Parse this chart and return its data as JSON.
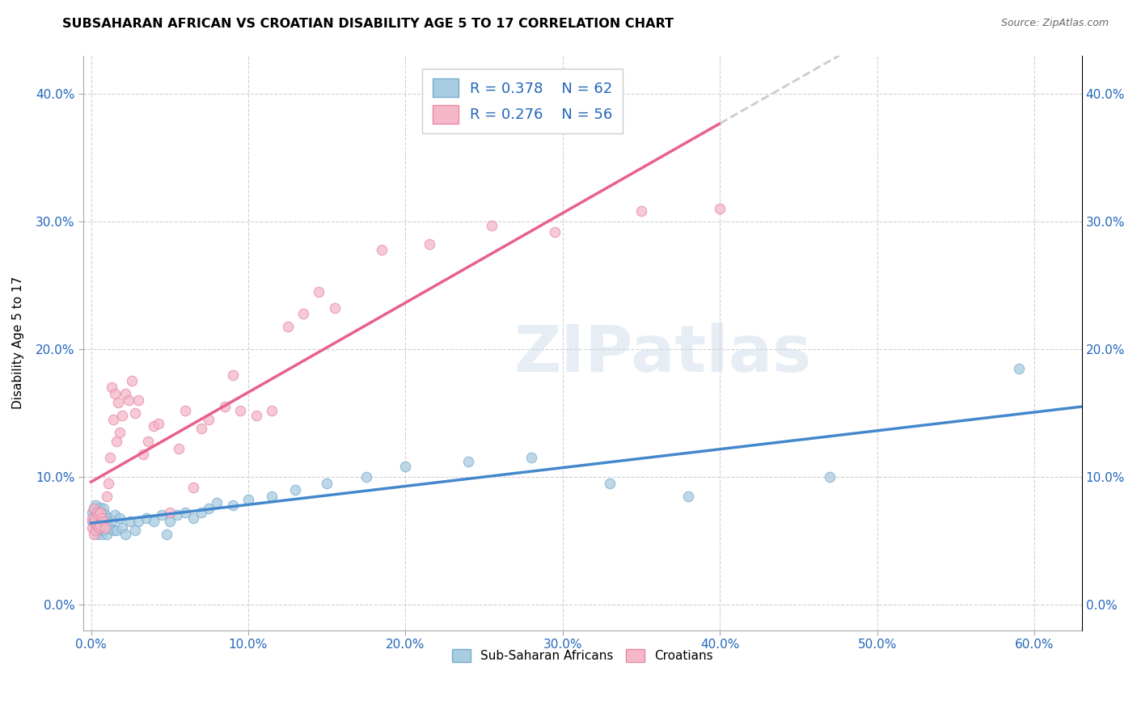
{
  "title": "SUBSAHARAN AFRICAN VS CROATIAN DISABILITY AGE 5 TO 17 CORRELATION CHART",
  "source": "Source: ZipAtlas.com",
  "ylabel": "Disability Age 5 to 17",
  "x_tick_labels": [
    "0.0%",
    "10.0%",
    "20.0%",
    "30.0%",
    "40.0%",
    "50.0%",
    "60.0%"
  ],
  "x_ticks": [
    0.0,
    0.1,
    0.2,
    0.3,
    0.4,
    0.5,
    0.6
  ],
  "y_tick_labels": [
    "0.0%",
    "10.0%",
    "20.0%",
    "30.0%",
    "40.0%"
  ],
  "y_ticks": [
    0.0,
    0.1,
    0.2,
    0.3,
    0.4
  ],
  "xlim": [
    -0.005,
    0.63
  ],
  "ylim": [
    -0.02,
    0.43
  ],
  "legend_r1": "R = 0.378",
  "legend_n1": "N = 62",
  "legend_r2": "R = 0.276",
  "legend_n2": "N = 56",
  "legend_label1": "Sub-Saharan Africans",
  "legend_label2": "Croatians",
  "color_blue_fill": "#a8cce0",
  "color_pink_fill": "#f4b8c8",
  "color_blue_edge": "#7aaacf",
  "color_pink_edge": "#e888a8",
  "color_blue_line": "#4488cc",
  "color_pink_line": "#e8608c",
  "color_dashed": "#cccccc",
  "color_text_blue": "#2266bb",
  "watermark": "ZIPatlas",
  "blue_scatter_x": [
    0.001,
    0.001,
    0.002,
    0.002,
    0.003,
    0.003,
    0.003,
    0.004,
    0.004,
    0.004,
    0.005,
    0.005,
    0.005,
    0.006,
    0.006,
    0.006,
    0.007,
    0.007,
    0.007,
    0.008,
    0.008,
    0.008,
    0.009,
    0.009,
    0.01,
    0.01,
    0.011,
    0.012,
    0.013,
    0.014,
    0.015,
    0.016,
    0.018,
    0.02,
    0.022,
    0.025,
    0.028,
    0.03,
    0.035,
    0.04,
    0.045,
    0.048,
    0.05,
    0.055,
    0.06,
    0.065,
    0.07,
    0.075,
    0.08,
    0.09,
    0.1,
    0.115,
    0.13,
    0.15,
    0.175,
    0.2,
    0.24,
    0.28,
    0.33,
    0.38,
    0.47,
    0.59
  ],
  "blue_scatter_y": [
    0.065,
    0.072,
    0.068,
    0.075,
    0.06,
    0.07,
    0.078,
    0.055,
    0.065,
    0.072,
    0.058,
    0.068,
    0.074,
    0.06,
    0.07,
    0.076,
    0.055,
    0.065,
    0.072,
    0.058,
    0.068,
    0.075,
    0.06,
    0.07,
    0.055,
    0.065,
    0.068,
    0.06,
    0.065,
    0.058,
    0.07,
    0.058,
    0.068,
    0.06,
    0.055,
    0.065,
    0.058,
    0.065,
    0.068,
    0.065,
    0.07,
    0.055,
    0.065,
    0.07,
    0.072,
    0.068,
    0.072,
    0.075,
    0.08,
    0.078,
    0.082,
    0.085,
    0.09,
    0.095,
    0.1,
    0.108,
    0.112,
    0.115,
    0.095,
    0.085,
    0.1,
    0.185
  ],
  "pink_scatter_x": [
    0.001,
    0.001,
    0.002,
    0.002,
    0.002,
    0.003,
    0.003,
    0.004,
    0.004,
    0.005,
    0.005,
    0.006,
    0.006,
    0.007,
    0.008,
    0.009,
    0.01,
    0.011,
    0.012,
    0.013,
    0.014,
    0.015,
    0.016,
    0.017,
    0.018,
    0.02,
    0.022,
    0.024,
    0.026,
    0.028,
    0.03,
    0.033,
    0.036,
    0.04,
    0.043,
    0.05,
    0.056,
    0.06,
    0.065,
    0.07,
    0.075,
    0.085,
    0.09,
    0.095,
    0.105,
    0.115,
    0.125,
    0.135,
    0.145,
    0.155,
    0.185,
    0.215,
    0.255,
    0.295,
    0.35,
    0.4
  ],
  "pink_scatter_y": [
    0.06,
    0.068,
    0.055,
    0.065,
    0.075,
    0.058,
    0.068,
    0.062,
    0.072,
    0.06,
    0.07,
    0.062,
    0.072,
    0.068,
    0.065,
    0.06,
    0.085,
    0.095,
    0.115,
    0.17,
    0.145,
    0.165,
    0.128,
    0.158,
    0.135,
    0.148,
    0.165,
    0.16,
    0.175,
    0.15,
    0.16,
    0.118,
    0.128,
    0.14,
    0.142,
    0.072,
    0.122,
    0.152,
    0.092,
    0.138,
    0.145,
    0.155,
    0.18,
    0.152,
    0.148,
    0.152,
    0.218,
    0.228,
    0.245,
    0.232,
    0.278,
    0.282,
    0.297,
    0.292,
    0.308,
    0.31
  ]
}
